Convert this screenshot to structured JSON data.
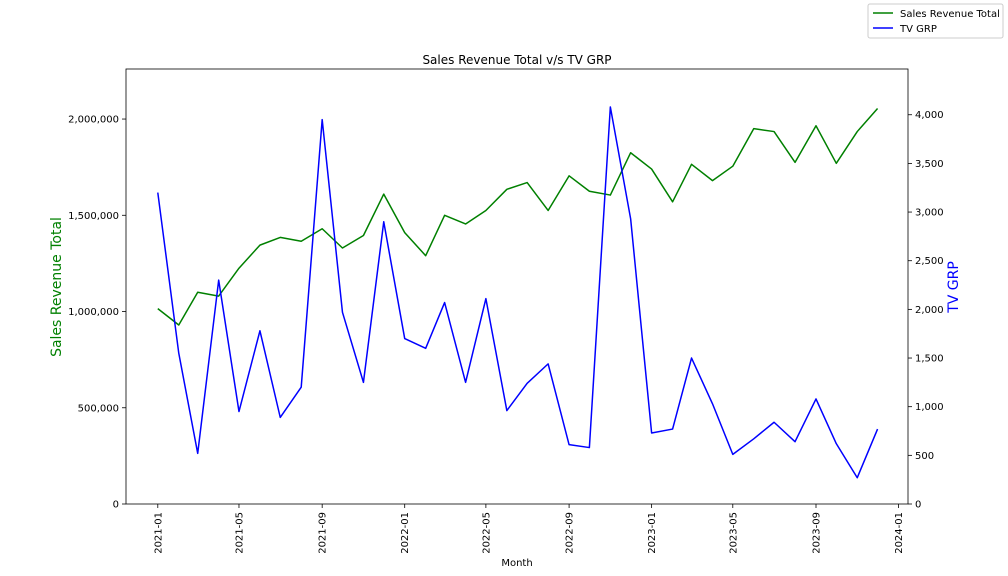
{
  "chart_data": {
    "type": "line",
    "title": "Sales Revenue Total v/s TV GRP",
    "xlabel": "Month",
    "ylabel_left": "Sales Revenue Total",
    "ylabel_right": "TV GRP",
    "grid": false,
    "legend_position": "top-right",
    "x": [
      "2021-01",
      "2021-02",
      "2021-03",
      "2021-04",
      "2021-05",
      "2021-06",
      "2021-07",
      "2021-08",
      "2021-09",
      "2021-10",
      "2021-11",
      "2021-12",
      "2022-01",
      "2022-02",
      "2022-03",
      "2022-04",
      "2022-05",
      "2022-06",
      "2022-07",
      "2022-08",
      "2022-09",
      "2022-10",
      "2022-11",
      "2022-12",
      "2023-01",
      "2023-02",
      "2023-03",
      "2023-04",
      "2023-05",
      "2023-06",
      "2023-07",
      "2023-08",
      "2023-09",
      "2023-10",
      "2023-11",
      "2023-12"
    ],
    "x_ticks": [
      "2021-01",
      "2021-05",
      "2021-09",
      "2022-01",
      "2022-05",
      "2022-09",
      "2023-01",
      "2023-05",
      "2023-09",
      "2024-01"
    ],
    "xlim": [
      "2020-11-15",
      "2024-01-15"
    ],
    "y_left_lim": [
      0,
      2260000
    ],
    "y_left_ticks": [
      0,
      500000,
      1000000,
      1500000,
      2000000
    ],
    "y_left_tick_labels": [
      "0",
      "500,000",
      "1,000,000",
      "1,500,000",
      "2,000,000"
    ],
    "y_right_lim": [
      0,
      4470
    ],
    "y_right_ticks": [
      0,
      500,
      1000,
      1500,
      2000,
      2500,
      3000,
      3500,
      4000
    ],
    "y_right_tick_labels": [
      "0",
      "500",
      "1,000",
      "1,500",
      "2,000",
      "2,500",
      "3,000",
      "3,500",
      "4,000"
    ],
    "series": [
      {
        "name": "Sales Revenue Total",
        "axis": "left",
        "color": "#008000",
        "values": [
          1015000,
          930000,
          1100000,
          1080000,
          1225000,
          1345000,
          1385000,
          1365000,
          1430000,
          1330000,
          1395000,
          1610000,
          1410000,
          1290000,
          1500000,
          1455000,
          1525000,
          1635000,
          1670000,
          1525000,
          1705000,
          1625000,
          1605000,
          1825000,
          1740000,
          1570000,
          1765000,
          1680000,
          1755000,
          1950000,
          1935000,
          1775000,
          1965000,
          1770000,
          1935000,
          2055000
        ]
      },
      {
        "name": "TV GRP",
        "axis": "right",
        "color": "#0000ff",
        "values": [
          3200,
          1550,
          520,
          2300,
          950,
          1780,
          890,
          1200,
          3950,
          1970,
          1250,
          2900,
          1700,
          1600,
          2070,
          1250,
          2110,
          960,
          1240,
          1440,
          610,
          580,
          4080,
          2930,
          730,
          770,
          1500,
          1030,
          510,
          670,
          840,
          640,
          1080,
          620,
          270,
          770
        ]
      }
    ]
  }
}
